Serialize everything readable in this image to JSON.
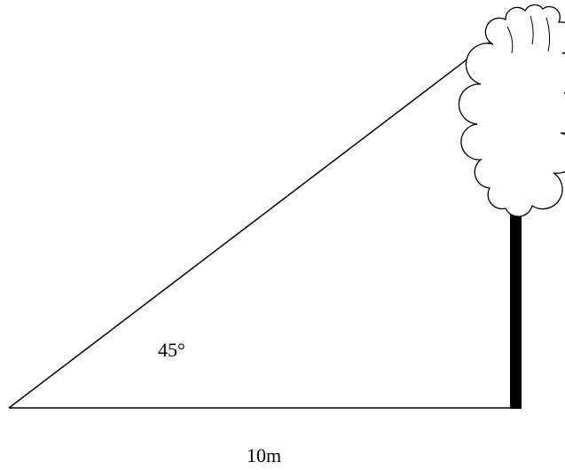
{
  "labels": {
    "angle": "45°",
    "base": "10m"
  }
}
